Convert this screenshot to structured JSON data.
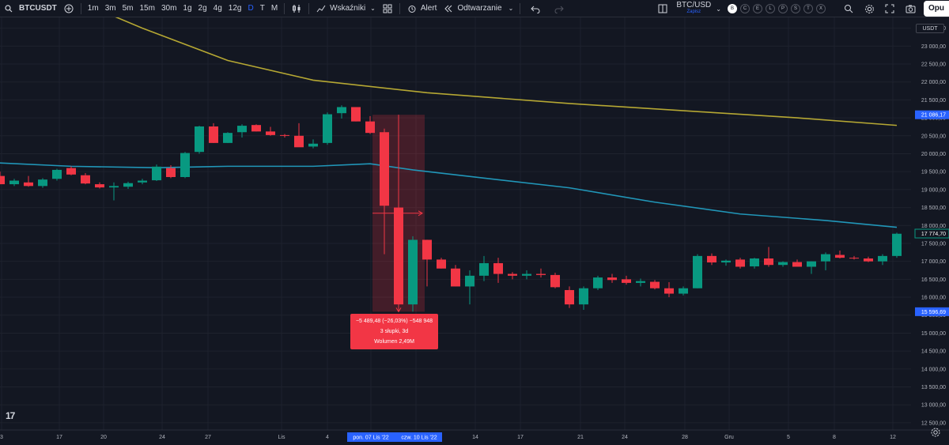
{
  "toolbar": {
    "symbol": "BTCUSDT",
    "intervals": [
      "1m",
      "3m",
      "5m",
      "15m",
      "30m",
      "1g",
      "2g",
      "4g",
      "12g",
      "D",
      "T",
      "M"
    ],
    "active_interval": "D",
    "indicators_label": "Wskaźniki",
    "alert_label": "Alert",
    "replay_label": "Odtwarzanie",
    "pair_label": "BTC/USD",
    "save_label": "Zapisz",
    "circles": [
      "B",
      "C",
      "E",
      "L",
      "P",
      "S",
      "T",
      "X"
    ],
    "publish_label": "Opu"
  },
  "price_axis": {
    "currency": "USDT",
    "labels": [
      "23 500,00",
      "23 000,00",
      "22 500,00",
      "22 000,00",
      "21 500,00",
      "21 000,00",
      "20 500,00",
      "20 000,00",
      "19 500,00",
      "19 000,00",
      "18 500,00",
      "18 000,00",
      "17 500,00",
      "17 000,00",
      "16 500,00",
      "16 000,00",
      "15 500,00",
      "15 000,00",
      "14 500,00",
      "14 000,00",
      "13 500,00",
      "13 000,00",
      "12 500,00"
    ],
    "tag_upper": "21 086,17",
    "tag_current": "17 774,70",
    "tag_lower": "15 596,69",
    "colors": {
      "upper": "#2962ff",
      "current": "#089981",
      "lower": "#2962ff"
    }
  },
  "time_axis": {
    "labels": [
      "3",
      "17",
      "20",
      "24",
      "27",
      "Lis",
      "4",
      "14",
      "17",
      "21",
      "24",
      "28",
      "Gru",
      "5",
      "8",
      "12"
    ],
    "range_start": "pon. 07 Lis '22",
    "range_end": "czw. 10 Lis '22"
  },
  "measure": {
    "line1": "−5 489,48 (−26,03%) −548 948",
    "line2": "3 słupki, 3d",
    "line3": "Wolumen 2,49M"
  },
  "colors": {
    "up": "#089981",
    "down": "#f23645",
    "ma_slow": "#b5a733",
    "ma_fast": "#2196b8",
    "background": "#131722"
  },
  "chart_data": {
    "type": "candlestick",
    "ylim": [
      12300,
      23800
    ],
    "candles": [
      {
        "o": 19380,
        "h": 19500,
        "l": 19150,
        "c": 19150
      },
      {
        "o": 19150,
        "h": 19300,
        "l": 19100,
        "c": 19250
      },
      {
        "o": 19200,
        "h": 19380,
        "l": 19080,
        "c": 19100
      },
      {
        "o": 19100,
        "h": 19320,
        "l": 19050,
        "c": 19280
      },
      {
        "o": 19300,
        "h": 19580,
        "l": 19250,
        "c": 19550
      },
      {
        "o": 19600,
        "h": 19650,
        "l": 19400,
        "c": 19420
      },
      {
        "o": 19400,
        "h": 19460,
        "l": 19150,
        "c": 19170
      },
      {
        "o": 19150,
        "h": 19200,
        "l": 19030,
        "c": 19060
      },
      {
        "o": 19060,
        "h": 19200,
        "l": 18700,
        "c": 19100
      },
      {
        "o": 19080,
        "h": 19220,
        "l": 19020,
        "c": 19180
      },
      {
        "o": 19200,
        "h": 19300,
        "l": 19150,
        "c": 19250
      },
      {
        "o": 19260,
        "h": 19700,
        "l": 19240,
        "c": 19640
      },
      {
        "o": 19600,
        "h": 19680,
        "l": 19320,
        "c": 19350
      },
      {
        "o": 19350,
        "h": 20050,
        "l": 19320,
        "c": 20020
      },
      {
        "o": 20050,
        "h": 20780,
        "l": 20000,
        "c": 20760
      },
      {
        "o": 20760,
        "h": 20850,
        "l": 20300,
        "c": 20300
      },
      {
        "o": 20300,
        "h": 20600,
        "l": 20300,
        "c": 20580
      },
      {
        "o": 20600,
        "h": 20820,
        "l": 20450,
        "c": 20780
      },
      {
        "o": 20800,
        "h": 20820,
        "l": 20620,
        "c": 20620
      },
      {
        "o": 20620,
        "h": 20750,
        "l": 20500,
        "c": 20520
      },
      {
        "o": 20520,
        "h": 20550,
        "l": 20450,
        "c": 20500
      },
      {
        "o": 20500,
        "h": 20850,
        "l": 20200,
        "c": 20180
      },
      {
        "o": 20200,
        "h": 20400,
        "l": 20150,
        "c": 20280
      },
      {
        "o": 20300,
        "h": 21150,
        "l": 20250,
        "c": 21100
      },
      {
        "o": 21130,
        "h": 21350,
        "l": 20980,
        "c": 21300
      },
      {
        "o": 21300,
        "h": 21300,
        "l": 20900,
        "c": 20900
      },
      {
        "o": 20900,
        "h": 21050,
        "l": 20550,
        "c": 20580
      },
      {
        "o": 20600,
        "h": 20700,
        "l": 17200,
        "c": 18550
      },
      {
        "o": 18500,
        "h": 18500,
        "l": 15600,
        "c": 15800
      },
      {
        "o": 15800,
        "h": 17700,
        "l": 15600,
        "c": 17600
      },
      {
        "o": 17600,
        "h": 17600,
        "l": 16300,
        "c": 17050
      },
      {
        "o": 17050,
        "h": 17100,
        "l": 16800,
        "c": 16800
      },
      {
        "o": 16800,
        "h": 16900,
        "l": 16300,
        "c": 16300
      },
      {
        "o": 16300,
        "h": 16750,
        "l": 15800,
        "c": 16600
      },
      {
        "o": 16600,
        "h": 17150,
        "l": 16450,
        "c": 16950
      },
      {
        "o": 16950,
        "h": 17100,
        "l": 16400,
        "c": 16650
      },
      {
        "o": 16650,
        "h": 16700,
        "l": 16500,
        "c": 16600
      },
      {
        "o": 16600,
        "h": 16750,
        "l": 16500,
        "c": 16650
      },
      {
        "o": 16650,
        "h": 16800,
        "l": 16550,
        "c": 16620
      },
      {
        "o": 16620,
        "h": 16680,
        "l": 16250,
        "c": 16280
      },
      {
        "o": 16200,
        "h": 16300,
        "l": 15700,
        "c": 15800
      },
      {
        "o": 15800,
        "h": 16300,
        "l": 15650,
        "c": 16250
      },
      {
        "o": 16250,
        "h": 16600,
        "l": 16200,
        "c": 16550
      },
      {
        "o": 16550,
        "h": 16650,
        "l": 16400,
        "c": 16480
      },
      {
        "o": 16500,
        "h": 16600,
        "l": 16350,
        "c": 16400
      },
      {
        "o": 16400,
        "h": 16520,
        "l": 16300,
        "c": 16450
      },
      {
        "o": 16430,
        "h": 16480,
        "l": 16220,
        "c": 16250
      },
      {
        "o": 16250,
        "h": 16420,
        "l": 16000,
        "c": 16100
      },
      {
        "o": 16100,
        "h": 16300,
        "l": 16050,
        "c": 16250
      },
      {
        "o": 16250,
        "h": 17200,
        "l": 16250,
        "c": 17150
      },
      {
        "o": 17150,
        "h": 17220,
        "l": 16900,
        "c": 16970
      },
      {
        "o": 16970,
        "h": 17050,
        "l": 16880,
        "c": 17020
      },
      {
        "o": 17050,
        "h": 17100,
        "l": 16800,
        "c": 16850
      },
      {
        "o": 16860,
        "h": 17100,
        "l": 16800,
        "c": 17080
      },
      {
        "o": 17080,
        "h": 17400,
        "l": 16850,
        "c": 16900
      },
      {
        "o": 16900,
        "h": 17000,
        "l": 16850,
        "c": 16980
      },
      {
        "o": 16980,
        "h": 17050,
        "l": 16880,
        "c": 16850
      },
      {
        "o": 16850,
        "h": 17000,
        "l": 16650,
        "c": 17000
      },
      {
        "o": 17000,
        "h": 17250,
        "l": 16750,
        "c": 17200
      },
      {
        "o": 17180,
        "h": 17300,
        "l": 17080,
        "c": 17100
      },
      {
        "o": 17100,
        "h": 17150,
        "l": 17050,
        "c": 17080
      },
      {
        "o": 17080,
        "h": 17130,
        "l": 16980,
        "c": 17000
      },
      {
        "o": 17000,
        "h": 17200,
        "l": 16900,
        "c": 17150
      },
      {
        "o": 17150,
        "h": 17800,
        "l": 17100,
        "c": 17770
      }
    ],
    "ma_slow": [
      [
        7,
        24000
      ],
      [
        10,
        23500
      ],
      [
        16,
        22600
      ],
      [
        22,
        22050
      ],
      [
        30,
        21700
      ],
      [
        40,
        21400
      ],
      [
        50,
        21150
      ],
      [
        56,
        21000
      ],
      [
        63,
        20790
      ]
    ],
    "ma_fast": [
      [
        -1,
        19760
      ],
      [
        5,
        19650
      ],
      [
        11,
        19610
      ],
      [
        16,
        19650
      ],
      [
        22,
        19650
      ],
      [
        26,
        19720
      ],
      [
        29,
        19550
      ],
      [
        34,
        19320
      ],
      [
        40,
        19050
      ],
      [
        46,
        18650
      ],
      [
        52,
        18320
      ],
      [
        58,
        18140
      ],
      [
        63,
        17950
      ]
    ]
  }
}
